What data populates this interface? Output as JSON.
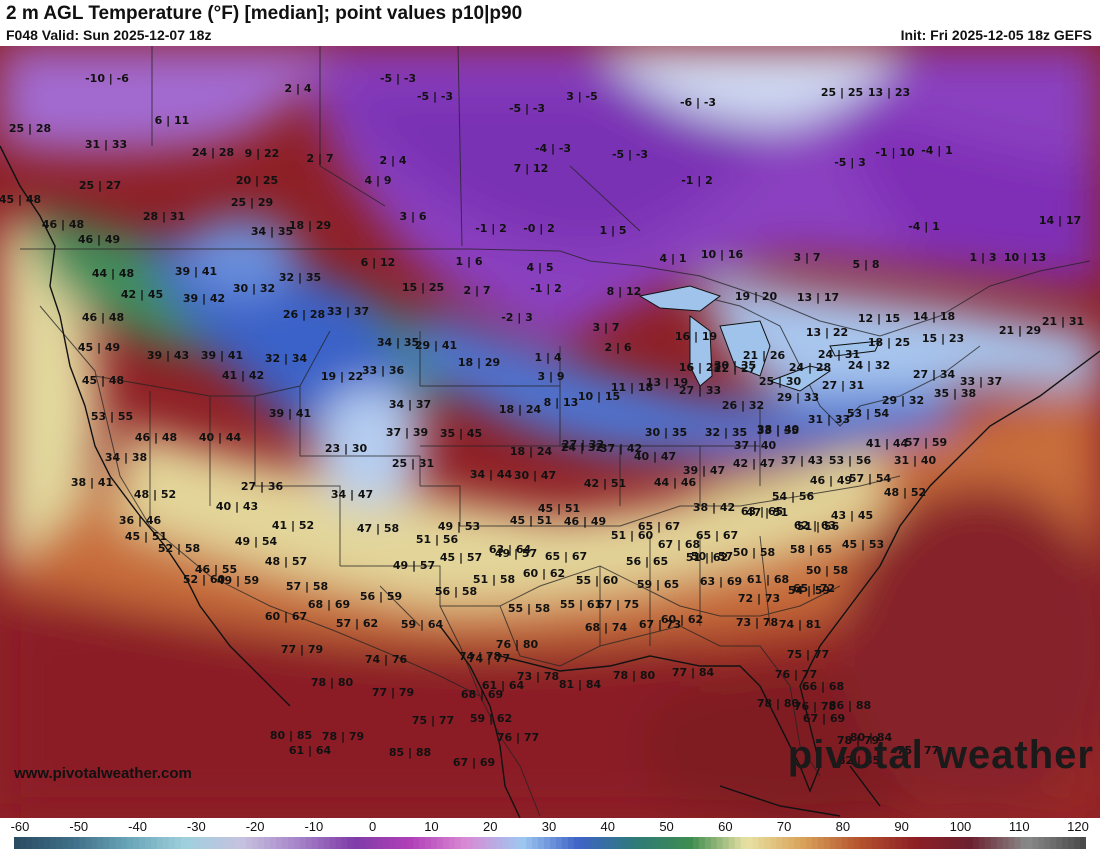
{
  "header": {
    "title": "2 m AGL Temperature (°F) [median]; point values p10|p90",
    "valid": "F048 Valid: Sun 2025-12-07 18z",
    "init": "Init: Fri 2025-12-05 18z GEFS"
  },
  "footer": {
    "site": "www.pivotalweather.com",
    "brand": "pivotal weather"
  },
  "colorbar": {
    "ticks": [
      "-60",
      "-50",
      "-40",
      "-30",
      "-20",
      "-10",
      "0",
      "10",
      "20",
      "30",
      "40",
      "50",
      "60",
      "70",
      "80",
      "90",
      "100",
      "110",
      "120"
    ],
    "colors": [
      "#2b4d63",
      "#3f6f88",
      "#6aa5b8",
      "#9fd0dd",
      "#c7c2e0",
      "#a784c9",
      "#7f3ca8",
      "#b13fb8",
      "#d98ad4",
      "#9ec8f0",
      "#3f63c7",
      "#2e7a7a",
      "#3f8c50",
      "#e8e2a4",
      "#d9a35a",
      "#b5542f",
      "#8e1f25",
      "#6b2130",
      "#8a8a8a",
      "#4a4a4a"
    ]
  },
  "point_values": [
    "-10|-6",
    "2|4",
    "-5|-3",
    "-5|-3",
    "3|-5",
    "25|25",
    "13|23",
    "-6|-3",
    "25|28",
    "6|11",
    "-5|-3",
    "31|33",
    "24|28",
    "9|22",
    "-4|-3",
    "-5|-3",
    "2|7",
    "2|4",
    "7|12",
    "-1|10",
    "-4|1",
    "25|27",
    "20|25",
    "4|9",
    "-1|2",
    "-5|3",
    "45|48",
    "28|31",
    "25|29",
    "3|6",
    "-1|2",
    "-0|2",
    "1|5",
    "-4|1",
    "14|17",
    "46|48",
    "34|35",
    "18|29",
    "4|1",
    "10|16",
    "3|7",
    "5|8",
    "1|3",
    "10|13",
    "46|49",
    "39|41",
    "6|12",
    "1|6",
    "4|5",
    "44|48",
    "30|32",
    "32|35",
    "15|25",
    "2|7",
    "-1|2",
    "8|12",
    "42|45",
    "39|42",
    "13|17",
    "46|48",
    "26|28",
    "33|37",
    "-2|3",
    "3|7",
    "19|20",
    "12|15",
    "14|18",
    "21|29",
    "21|31",
    "45|49",
    "34|35",
    "29|41",
    "16|19",
    "13|22",
    "39|43",
    "39|41",
    "32|34",
    "1|4",
    "2|6",
    "18|25",
    "15|23",
    "41|42",
    "19|22",
    "33|36",
    "18|29",
    "21|26",
    "24|31",
    "30|35",
    "45|48",
    "3|9",
    "16|23",
    "22|27",
    "24|28",
    "24|32",
    "27|34",
    "33|37",
    "25|30",
    "27|31",
    "53|55",
    "39|41",
    "34|37",
    "18|24",
    "8|13",
    "10|15",
    "11|18",
    "13|19",
    "27|33",
    "29|33",
    "29|32",
    "35|38",
    "46|48",
    "40|44",
    "37|39",
    "35|45",
    "26|32",
    "33|35",
    "31|33",
    "53|54",
    "34|38",
    "23|30",
    "18|24",
    "24|32",
    "30|35",
    "32|35",
    "38|40",
    "41|44",
    "57|59",
    "38|41",
    "25|31",
    "27|32",
    "37|42",
    "37|40",
    "31|40",
    "34|44",
    "40|47",
    "39|47",
    "42|47",
    "37|43",
    "53|56",
    "48|52",
    "27|36",
    "30|47",
    "42|51",
    "44|46",
    "57|54",
    "40|43",
    "34|47",
    "45|51",
    "38|42",
    "46|49",
    "54|56",
    "48|52",
    "36|46",
    "41|52",
    "45|51",
    "46|49",
    "63|65",
    "62|63",
    "43|45",
    "45|51",
    "49|54",
    "47|58",
    "49|53",
    "65|67",
    "65|67",
    "47|51",
    "52|58",
    "46|55",
    "51|56",
    "63|64",
    "51|60",
    "51|56",
    "45|53",
    "48|57",
    "49|57",
    "45|57",
    "49|57",
    "65|67",
    "67|68",
    "50|57",
    "50|58",
    "58|65",
    "52|60",
    "49|59",
    "51|58",
    "60|62",
    "55|60",
    "56|65",
    "51|62",
    "50|58",
    "57|58",
    "56|58",
    "59|65",
    "63|69",
    "61|68",
    "54|59",
    "68|69",
    "56|59",
    "55|58",
    "55|61",
    "67|75",
    "65|72",
    "60|67",
    "57|62",
    "59|64",
    "72|73",
    "68|74",
    "67|73",
    "60|62",
    "73|78",
    "74|81",
    "77|79",
    "76|80",
    "74|78",
    "74|76",
    "74|77",
    "75|77",
    "78|80",
    "61|64",
    "73|78",
    "81|84",
    "78|80",
    "77|84",
    "76|77",
    "77|79",
    "68|69",
    "66|68",
    "78|80",
    "76|78",
    "86|88",
    "80|85",
    "78|79",
    "75|77",
    "59|62",
    "67|69",
    "78|79",
    "76|77",
    "75|77",
    "61|64",
    "80|84",
    "85|88",
    "67|69",
    "82|85"
  ]
}
